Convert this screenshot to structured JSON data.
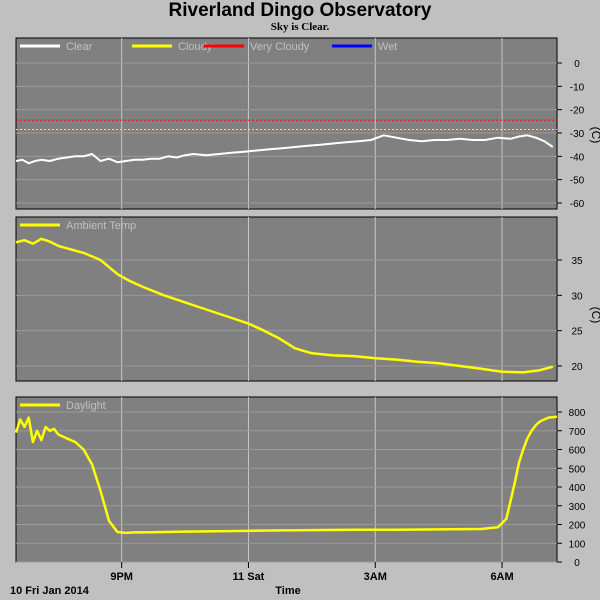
{
  "title": "Riverland Dingo Observatory",
  "subtitle": "Sky is Clear.",
  "colors": {
    "background": "#c0c0c0",
    "plot_bg": "#808080",
    "grid": "#c8c8c8",
    "clear": "#ffffff",
    "cloudy": "#ffff00",
    "very_cloudy": "#ff0000",
    "wet": "#0000ff"
  },
  "chart_data": [
    {
      "type": "line",
      "panel": "sky",
      "legend": [
        "Clear",
        "Cloudy",
        "Very Cloudy",
        "Wet"
      ],
      "yunit": "(C)",
      "ylim": [
        -60,
        10
      ],
      "yticks": [
        0,
        -10,
        -20,
        -30,
        -40,
        -50,
        -60
      ],
      "xlim": [
        0,
        12.8
      ],
      "thresholds": [
        {
          "name": "Very Cloudy",
          "value": -24.5
        },
        {
          "name": "Cloudy",
          "value": -28.5
        }
      ],
      "series": [
        {
          "name": "Clear",
          "x": [
            0,
            0.15,
            0.3,
            0.45,
            0.6,
            0.8,
            1.0,
            1.2,
            1.4,
            1.6,
            1.8,
            2.0,
            2.2,
            2.4,
            2.6,
            2.8,
            3.0,
            3.2,
            3.4,
            3.6,
            3.8,
            4.0,
            4.2,
            4.5,
            4.8,
            5.1,
            5.4,
            5.7,
            6.0,
            6.3,
            6.6,
            6.9,
            7.2,
            7.5,
            7.8,
            8.1,
            8.4,
            8.7,
            9.0,
            9.3,
            9.6,
            9.9,
            10.2,
            10.5,
            10.8,
            11.1,
            11.4,
            11.7,
            11.9,
            12.1,
            12.3,
            12.5,
            12.7
          ],
          "values": [
            -42,
            -41.5,
            -43,
            -42,
            -41.5,
            -42,
            -41,
            -40.5,
            -40,
            -40,
            -39,
            -42,
            -41,
            -42.5,
            -42,
            -41.5,
            -41.5,
            -41,
            -41,
            -40,
            -40.5,
            -39.5,
            -39,
            -39.5,
            -39,
            -38.5,
            -38,
            -37.5,
            -37,
            -36.5,
            -36,
            -35.5,
            -35,
            -34.5,
            -34,
            -33.5,
            -33,
            -31,
            -32,
            -33,
            -33.5,
            -33,
            -33,
            -32.5,
            -33,
            -33,
            -32,
            -32.5,
            -31.5,
            -31,
            -32,
            -33.5,
            -36
          ]
        }
      ]
    },
    {
      "type": "line",
      "panel": "ambient",
      "legend": [
        "Ambient Temp"
      ],
      "yunit": "(C)",
      "ylim": [
        18,
        40
      ],
      "yticks": [
        35,
        30,
        25,
        20
      ],
      "xlim": [
        0,
        12.8
      ],
      "series": [
        {
          "name": "Ambient Temp",
          "x": [
            0,
            0.2,
            0.4,
            0.6,
            0.8,
            1.0,
            1.3,
            1.6,
            2.0,
            2.2,
            2.4,
            2.7,
            3.0,
            3.5,
            4.0,
            4.5,
            5.0,
            5.5,
            5.8,
            6.2,
            6.6,
            7.0,
            7.5,
            8.0,
            8.5,
            9.0,
            9.5,
            10.0,
            10.5,
            11.0,
            11.5,
            12.0,
            12.4,
            12.7
          ],
          "values": [
            37.5,
            37.8,
            37.3,
            38,
            37.6,
            37,
            36.5,
            36,
            35,
            34,
            33,
            32,
            31.2,
            30,
            29,
            28,
            27,
            26,
            25.2,
            24,
            22.5,
            21.8,
            21.5,
            21.4,
            21.1,
            20.9,
            20.6,
            20.4,
            20,
            19.6,
            19.2,
            19.1,
            19.4,
            19.9
          ]
        }
      ]
    },
    {
      "type": "line",
      "panel": "daylight",
      "legend": [
        "Daylight"
      ],
      "ylim": [
        0,
        850
      ],
      "yticks": [
        800,
        700,
        600,
        500,
        400,
        300,
        200,
        100,
        0
      ],
      "xlim": [
        0,
        12.8
      ],
      "series": [
        {
          "name": "Daylight",
          "x": [
            0,
            0.1,
            0.2,
            0.3,
            0.4,
            0.5,
            0.6,
            0.7,
            0.8,
            0.9,
            1.0,
            1.2,
            1.4,
            1.6,
            1.8,
            2.0,
            2.2,
            2.4,
            2.6,
            2.8,
            3.0,
            3.5,
            4.0,
            5.0,
            6.0,
            7.0,
            8.0,
            9.0,
            10.0,
            11.0,
            11.4,
            11.6,
            11.8,
            11.9,
            12.0,
            12.1,
            12.2,
            12.3,
            12.4,
            12.6,
            12.8
          ],
          "values": [
            690,
            760,
            720,
            770,
            640,
            700,
            650,
            720,
            700,
            710,
            680,
            660,
            640,
            600,
            520,
            380,
            220,
            160,
            155,
            158,
            158,
            160,
            162,
            165,
            168,
            170,
            172,
            172,
            174,
            176,
            185,
            230,
            420,
            530,
            600,
            660,
            700,
            730,
            750,
            770,
            775
          ]
        }
      ]
    }
  ],
  "x_axis": {
    "xlim": [
      0,
      12.8
    ],
    "ticks": [
      {
        "x": 2.5,
        "label": "9PM"
      },
      {
        "x": 5.5,
        "label": "11 Sat"
      },
      {
        "x": 8.5,
        "label": "3AM"
      },
      {
        "x": 11.5,
        "label": "6AM"
      }
    ],
    "date_label": "10 Fri Jan 2014",
    "xlabel": "Time"
  }
}
